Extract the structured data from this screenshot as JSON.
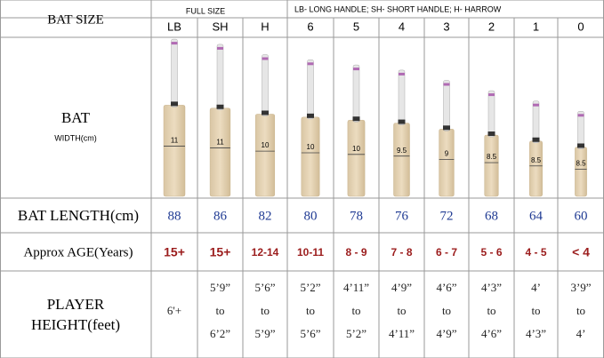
{
  "header": {
    "row_label": "BAT SIZE",
    "full_size": "FULL SIZE",
    "legend": "LB- LONG HANDLE; SH- SHORT HANDLE; H- HARROW",
    "sizes": [
      "LB",
      "SH",
      "H",
      "6",
      "5",
      "4",
      "3",
      "2",
      "1",
      "0"
    ]
  },
  "bat_row": {
    "label": "BAT",
    "sublabel": "WIDTH(cm)",
    "widths": [
      "11",
      "11",
      "10",
      "10",
      "10",
      "9.5",
      "9",
      "8.5",
      "8.5",
      "8.5"
    ]
  },
  "length_row": {
    "label": "BAT LENGTH(cm)",
    "values": [
      88,
      86,
      82,
      80,
      78,
      76,
      72,
      68,
      64,
      60
    ]
  },
  "age_row": {
    "label": "Approx AGE(Years)",
    "values": [
      "15+",
      "15+",
      "12-14",
      "10-11",
      "8 - 9",
      "7 - 8",
      "6 - 7",
      "5 - 6",
      "4 - 5",
      "< 4"
    ]
  },
  "height_row": {
    "label": [
      "PLAYER",
      "HEIGHT(feet)"
    ],
    "values": [
      [
        "6'+"
      ],
      [
        "5’9”",
        "to",
        "6’2”"
      ],
      [
        "5’6”",
        "to",
        "5’9”"
      ],
      [
        "5’2”",
        "to",
        "5’6”"
      ],
      [
        "4’11”",
        "to",
        "5’2”"
      ],
      [
        "4’9”",
        "to",
        "4’11”"
      ],
      [
        "4’6”",
        "to",
        "4’9”"
      ],
      [
        "4’3”",
        "to",
        "4’6”"
      ],
      [
        "4’",
        "to",
        "4’3”"
      ],
      [
        "3’9”",
        "to",
        "4’"
      ]
    ]
  }
}
